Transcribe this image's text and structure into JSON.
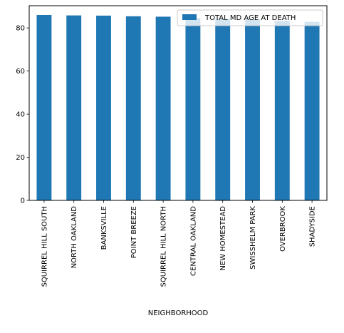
{
  "chart_data": {
    "type": "bar",
    "categories": [
      "SQUIRREL HILL SOUTH",
      "NORTH OAKLAND",
      "BANKSVILLE",
      "POINT BREEZE",
      "SQUIRREL HILL NORTH",
      "CENTRAL OAKLAND",
      "NEW HOMESTEAD",
      "SWISSHELM PARK",
      "OVERBROOK",
      "SHADYSIDE"
    ],
    "series": [
      {
        "name": "TOTAL MD AGE AT DEATH",
        "values": [
          86.0,
          85.8,
          85.7,
          85.4,
          85.2,
          84.5,
          84.2,
          84.0,
          83.3,
          82.8
        ],
        "color": "#1f77b4"
      }
    ],
    "xlabel": "NEIGHBORHOOD",
    "ylabel": "",
    "ylim": [
      0,
      90.3
    ],
    "yticks": [
      0,
      20,
      40,
      60,
      80
    ],
    "grid": false,
    "legend": "top-right"
  }
}
